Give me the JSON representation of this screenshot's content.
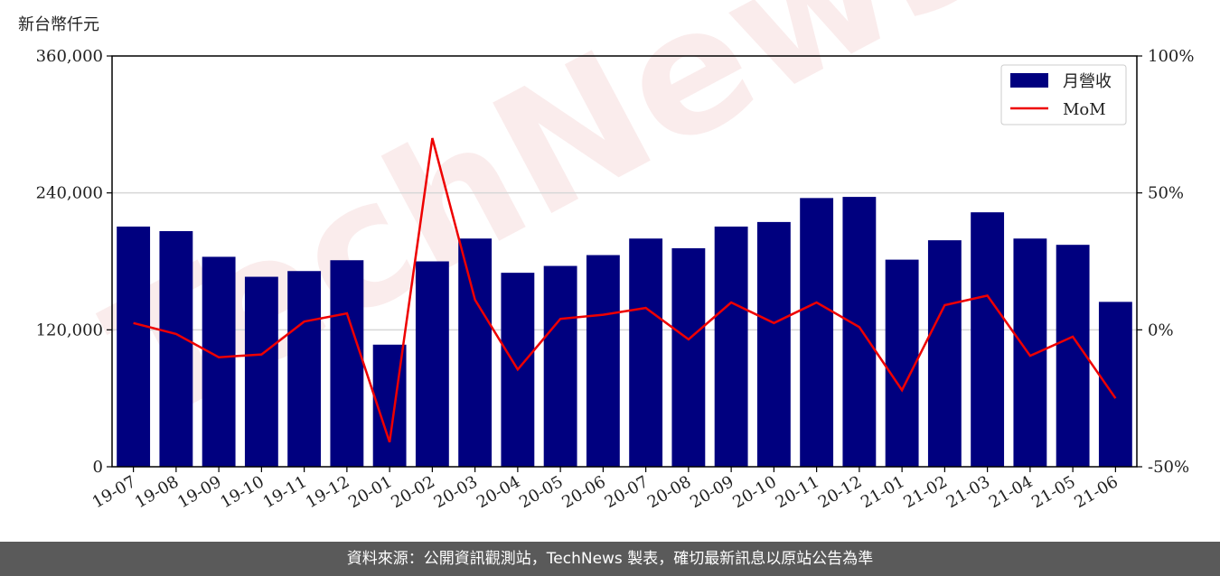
{
  "footer": {
    "text": "資料來源：公開資訊觀測站，TechNews 製表，確切最新訊息以原站公告為準"
  },
  "chart_data": {
    "type": "bar",
    "unit_label": "新台幣仟元",
    "categories": [
      "19-07",
      "19-08",
      "19-09",
      "19-10",
      "19-11",
      "19-12",
      "20-01",
      "20-02",
      "20-03",
      "20-04",
      "20-05",
      "20-06",
      "20-07",
      "20-08",
      "20-09",
      "20-10",
      "20-11",
      "20-12",
      "21-01",
      "21-02",
      "21-03",
      "21-04",
      "21-05",
      "21-06"
    ],
    "series": [
      {
        "name": "月營收",
        "type": "bar",
        "axis": "left",
        "color": "#00007f",
        "values": [
          210500,
          206500,
          184000,
          166500,
          171500,
          181000,
          107000,
          180000,
          200000,
          170000,
          176000,
          185500,
          200000,
          191500,
          210500,
          214500,
          235500,
          236500,
          181500,
          198500,
          223000,
          200000,
          194500,
          144500
        ]
      },
      {
        "name": "MoM",
        "type": "line",
        "axis": "right",
        "color": "#ee0000",
        "values": [
          2.5,
          -1.5,
          -10,
          -9,
          3,
          6,
          -41,
          70,
          11,
          -14.5,
          4,
          5.5,
          8,
          -3.5,
          10,
          2.5,
          10,
          1,
          -22,
          9,
          12.5,
          -9.5,
          -2.5,
          -25
        ]
      }
    ],
    "y_left": {
      "min": 0,
      "max": 360000,
      "ticks": [
        0,
        120000,
        240000,
        360000
      ],
      "tick_labels": [
        "0",
        "120,000",
        "240,000",
        "360,000"
      ]
    },
    "y_right": {
      "min": -50,
      "max": 100,
      "ticks": [
        -50,
        0,
        50,
        100
      ],
      "tick_labels": [
        "-50%",
        "0%",
        "50%",
        "100%"
      ]
    },
    "grid": "horizontal",
    "legend": {
      "position": "top-right"
    },
    "watermark": "TechNews"
  }
}
